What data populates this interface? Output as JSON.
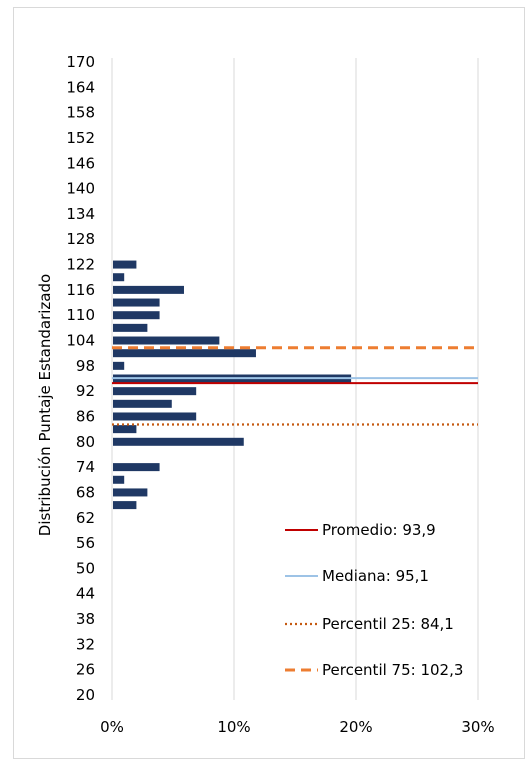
{
  "chart_data": {
    "type": "bar",
    "orientation": "horizontal",
    "ylabel": "Distribución  Puntaje  Estandarizado",
    "y_ticks": [
      "170",
      "164",
      "158",
      "152",
      "146",
      "140",
      "134",
      "128",
      "122",
      "116",
      "110",
      "104",
      "98",
      "92",
      "86",
      "80",
      "74",
      "68",
      "62",
      "56",
      "50",
      "44",
      "38",
      "32",
      "26",
      "20"
    ],
    "x_ticks": [
      "0%",
      "10%",
      "20%",
      "30%"
    ],
    "xlim": [
      0,
      0.3
    ],
    "ylim": [
      20,
      170
    ],
    "grid": "vertical",
    "legend_position": "bottom-right",
    "colors": {
      "bars": "#1f3864",
      "promedio": "#c00000",
      "mediana": "#9dc3e6",
      "p25": "#c55a11",
      "p75": "#ed7d31",
      "grid": "#d9d9d9"
    },
    "bars": [
      {
        "score": 122,
        "value": 0.02
      },
      {
        "score": 119,
        "value": 0.01
      },
      {
        "score": 116,
        "value": 0.059
      },
      {
        "score": 113,
        "value": 0.039
      },
      {
        "score": 110,
        "value": 0.039
      },
      {
        "score": 107,
        "value": 0.029
      },
      {
        "score": 104,
        "value": 0.088
      },
      {
        "score": 101,
        "value": 0.118
      },
      {
        "score": 98,
        "value": 0.01
      },
      {
        "score": 95,
        "value": 0.196
      },
      {
        "score": 92,
        "value": 0.069
      },
      {
        "score": 89,
        "value": 0.049
      },
      {
        "score": 86,
        "value": 0.069
      },
      {
        "score": 83,
        "value": 0.02
      },
      {
        "score": 80,
        "value": 0.108
      },
      {
        "score": 74,
        "value": 0.039
      },
      {
        "score": 71,
        "value": 0.01
      },
      {
        "score": 68,
        "value": 0.029
      },
      {
        "score": 65,
        "value": 0.02
      }
    ],
    "reference_lines": [
      {
        "key": "promedio",
        "label": "Promedio: 93,9",
        "value": 93.9,
        "style": "solid"
      },
      {
        "key": "mediana",
        "label": "Mediana: 95,1",
        "value": 95.1,
        "style": "solid"
      },
      {
        "key": "p25",
        "label": "Percentil 25: 84,1",
        "value": 84.1,
        "style": "dotted"
      },
      {
        "key": "p75",
        "label": "Percentil 75: 102,3",
        "value": 102.3,
        "style": "dashed"
      }
    ]
  }
}
